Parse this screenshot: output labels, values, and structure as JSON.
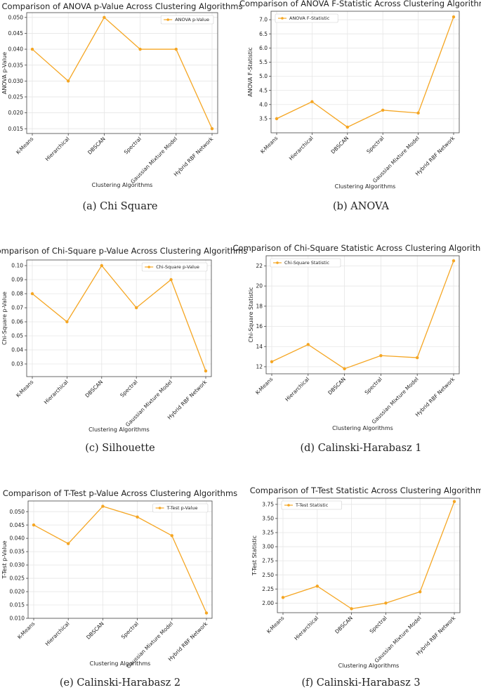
{
  "captions": [
    "(a) Chi Square",
    "(b) ANOVA",
    "(c) Silhouette",
    "(d) Calinski-Harabasz 1",
    "(e) Calinski-Harabasz 2",
    "(f) Calinski-Harabasz 3"
  ],
  "colors": {
    "line": "#f5a623",
    "marker": "#f5a623"
  },
  "chart_data": [
    {
      "type": "line",
      "title": "Comparison of ANOVA p-Value Across Clustering Algorithms",
      "xlabel": "Clustering Algorithms",
      "ylabel": "ANOVA p-Value",
      "categories": [
        "K-Means",
        "Hierarchical",
        "DBSCAN",
        "Spectral",
        "Gaussian Mixture Model",
        "Hybrid RBF Network"
      ],
      "series": [
        {
          "name": "ANOVA p-Value",
          "values": [
            0.04,
            0.03,
            0.05,
            0.04,
            0.04,
            0.015
          ]
        }
      ],
      "ylim": [
        0.0135,
        0.0515
      ],
      "yticks": [
        0.015,
        0.02,
        0.025,
        0.03,
        0.035,
        0.04,
        0.045,
        0.05
      ],
      "ytick_labels": [
        "0.015",
        "0.020",
        "0.025",
        "0.030",
        "0.035",
        "0.040",
        "0.045",
        "0.050"
      ],
      "grid": true,
      "legend": "top-right"
    },
    {
      "type": "line",
      "title": "Comparison of ANOVA F-Statistic Across Clustering Algorithms",
      "xlabel": "Clustering Algorithms",
      "ylabel": "ANOVA F-Statistic",
      "categories": [
        "K-Means",
        "Hierarchical",
        "DBSCAN",
        "Spectral",
        "Gaussian Mixture Model",
        "Hybrid RBF Network"
      ],
      "series": [
        {
          "name": "ANOVA F-Statistic",
          "values": [
            3.5,
            4.1,
            3.2,
            3.8,
            3.7,
            7.1
          ]
        }
      ],
      "ylim": [
        3.0,
        7.3
      ],
      "yticks": [
        3.5,
        4.0,
        4.5,
        5.0,
        5.5,
        6.0,
        6.5,
        7.0
      ],
      "ytick_labels": [
        "3.5",
        "4.0",
        "4.5",
        "5.0",
        "5.5",
        "6.0",
        "6.5",
        "7.0"
      ],
      "grid": true,
      "legend": "top-left"
    },
    {
      "type": "line",
      "title": "Comparison of Chi-Square p-Value Across Clustering Algorithms",
      "xlabel": "Clustering Algorithms",
      "ylabel": "Chi-Square p-Value",
      "categories": [
        "K-Means",
        "Hierarchical",
        "DBSCAN",
        "Spectral",
        "Gaussian Mixture Model",
        "Hybrid RBF Network"
      ],
      "series": [
        {
          "name": "Chi-Square p-Value",
          "values": [
            0.08,
            0.06,
            0.1,
            0.07,
            0.09,
            0.025
          ]
        }
      ],
      "ylim": [
        0.021,
        0.104
      ],
      "yticks": [
        0.03,
        0.04,
        0.05,
        0.06,
        0.07,
        0.08,
        0.09,
        0.1
      ],
      "ytick_labels": [
        "0.03",
        "0.04",
        "0.05",
        "0.06",
        "0.07",
        "0.08",
        "0.09",
        "0.10"
      ],
      "grid": true,
      "legend": "top-right"
    },
    {
      "type": "line",
      "title": "Comparison of Chi-Square Statistic Across Clustering Algorithms",
      "xlabel": "Clustering Algorithms",
      "ylabel": "Chi-Square Statistic",
      "categories": [
        "K-Means",
        "Hierarchical",
        "DBSCAN",
        "Spectral",
        "Gaussian Mixture Model",
        "Hybrid RBF Network"
      ],
      "series": [
        {
          "name": "Chi-Square Statistic",
          "values": [
            12.5,
            14.2,
            11.8,
            13.1,
            12.9,
            22.5
          ]
        }
      ],
      "ylim": [
        11.3,
        23.0
      ],
      "yticks": [
        12,
        14,
        16,
        18,
        20,
        22
      ],
      "ytick_labels": [
        "12",
        "14",
        "16",
        "18",
        "20",
        "22"
      ],
      "grid": true,
      "legend": "top-left"
    },
    {
      "type": "line",
      "title": "Comparison of T-Test p-Value Across Clustering Algorithms",
      "xlabel": "Clustering Algorithms",
      "ylabel": "T-Test p-Value",
      "categories": [
        "K-Means",
        "Hierarchical",
        "DBSCAN",
        "Spectral",
        "Gaussian Mixture Model",
        "Hybrid RBF Network"
      ],
      "series": [
        {
          "name": "T-Test p-Value",
          "values": [
            0.045,
            0.038,
            0.052,
            0.048,
            0.041,
            0.012
          ]
        }
      ],
      "ylim": [
        0.01,
        0.054
      ],
      "yticks": [
        0.01,
        0.015,
        0.02,
        0.025,
        0.03,
        0.035,
        0.04,
        0.045,
        0.05
      ],
      "ytick_labels": [
        "0.010",
        "0.015",
        "0.020",
        "0.025",
        "0.030",
        "0.035",
        "0.040",
        "0.045",
        "0.050"
      ],
      "grid": true,
      "legend": "top-right"
    },
    {
      "type": "line",
      "title": "Comparison of T-Test Statistic Across Clustering Algorithms",
      "xlabel": "Clustering Algorithms",
      "ylabel": "T-Test Statistic",
      "categories": [
        "K-Means",
        "Hierarchical",
        "DBSCAN",
        "Spectral",
        "Gaussian Mixture Model",
        "Hybrid RBF Network"
      ],
      "series": [
        {
          "name": "T-Test Statistic",
          "values": [
            2.1,
            2.3,
            1.9,
            2.0,
            2.2,
            3.8
          ]
        }
      ],
      "ylim": [
        1.83,
        3.86
      ],
      "yticks": [
        2.0,
        2.25,
        2.5,
        2.75,
        3.0,
        3.25,
        3.5,
        3.75
      ],
      "ytick_labels": [
        "2.00",
        "2.25",
        "2.50",
        "2.75",
        "3.00",
        "3.25",
        "3.50",
        "3.75"
      ],
      "grid": true,
      "legend": "top-left"
    }
  ]
}
